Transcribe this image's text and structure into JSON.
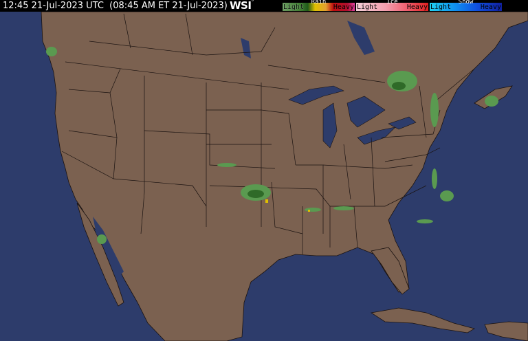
{
  "header": {
    "timestamp": "12:45 21-Jul-2023 UTC  (08:45 AM ET 21-Jul-2023)",
    "logo": "WSI",
    "logo_mark": "°"
  },
  "legend": {
    "rain": {
      "title": "Rain",
      "light": "Light",
      "heavy": "Heavy"
    },
    "ice": {
      "title": "Ice",
      "light": "Light",
      "heavy": "Heavy"
    },
    "snow": {
      "title": "Snow",
      "light": "Light",
      "heavy": "Heavy"
    }
  },
  "colors": {
    "ocean": "#2d3c6b",
    "land": "#7b6150",
    "lakes": "#2d3c6b",
    "borders": "#1a1210",
    "radar_light": "#5a9a50",
    "radar_moderate": "#2f6a28",
    "radar_heavy": "#e0c000"
  }
}
